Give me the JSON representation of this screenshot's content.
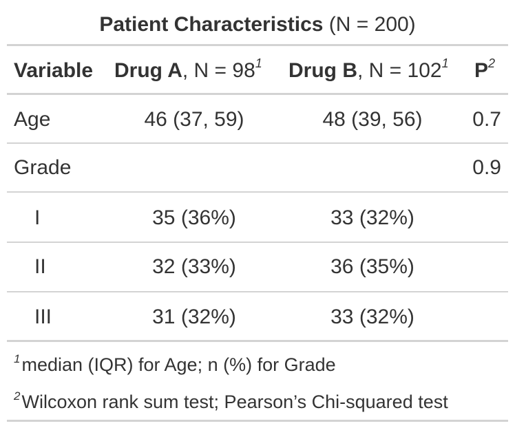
{
  "title": {
    "bold": "Patient Characteristics",
    "rest": " (N = 200)"
  },
  "header": {
    "variable": "Variable",
    "drug_a_bold": "Drug A",
    "drug_a_rest": ", N = 98",
    "drug_a_sup": "1",
    "drug_b_bold": "Drug B",
    "drug_b_rest": ", N = 102",
    "drug_b_sup": "1",
    "p_bold": "P",
    "p_sup": "2"
  },
  "rows": [
    {
      "label": "Age",
      "drug_a": "46 (37, 59)",
      "drug_b": "48 (39, 56)",
      "p": "0.7"
    },
    {
      "label": "Grade",
      "drug_a": "",
      "drug_b": "",
      "p": "0.9"
    },
    {
      "label": "I",
      "drug_a": "35 (36%)",
      "drug_b": "33 (32%)",
      "p": ""
    },
    {
      "label": "II",
      "drug_a": "32 (33%)",
      "drug_b": "36 (35%)",
      "p": ""
    },
    {
      "label": "III",
      "drug_a": "31 (32%)",
      "drug_b": "33 (32%)",
      "p": ""
    }
  ],
  "footnotes": [
    {
      "mark": "1",
      "text": "median (IQR) for Age; n (%) for Grade"
    },
    {
      "mark": "2",
      "text": "Wilcoxon rank sum test; Pearson’s Chi-squared test"
    }
  ]
}
